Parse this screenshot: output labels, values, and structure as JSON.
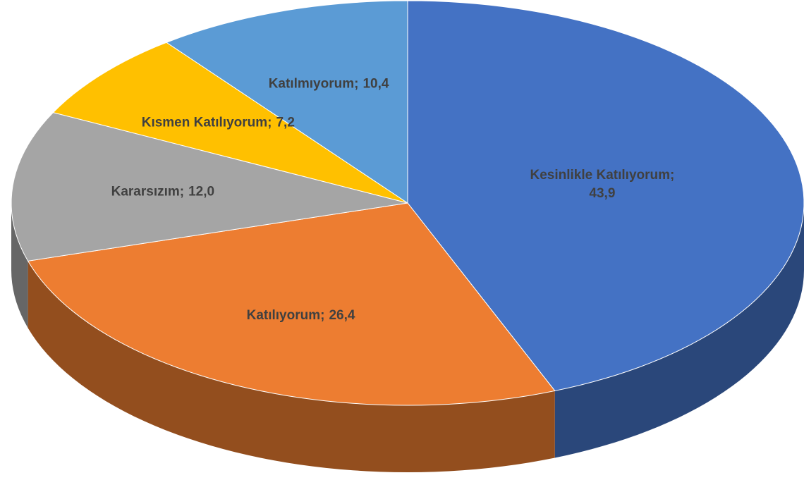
{
  "chart_data": {
    "type": "pie3d",
    "categories": [
      "Kesinlikle Katılıyorum",
      "Katılıyorum",
      "Kararsızım",
      "Kısmen Katılıyorum",
      "Katılmıyorum"
    ],
    "values": [
      43.9,
      26.4,
      12.0,
      7.2,
      10.4
    ],
    "value_labels": [
      "43,9",
      "26,4",
      "12,0",
      "7,2",
      "10,4"
    ],
    "label_separator": ";",
    "colors": [
      "#4472c4",
      "#ed7d31",
      "#a5a5a5",
      "#ffc000",
      "#5b9bd5"
    ]
  }
}
